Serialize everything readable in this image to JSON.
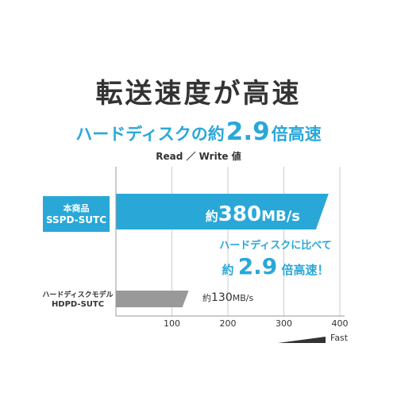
{
  "chart_data": {
    "type": "bar",
    "orientation": "horizontal",
    "title": "転送速度が高速",
    "subtitle": {
      "prefix": "ハードディスクの約",
      "ratio": "2.9",
      "suffix": "倍高速"
    },
    "measure_label": "Read ／ Write 値",
    "categories": [
      "本商品 SSPD-SUTC",
      "ハードディスクモデル HDPD-SUTC"
    ],
    "values": [
      380,
      130
    ],
    "unit": "MB/s",
    "xlim": [
      0,
      400
    ],
    "xticks": [
      100,
      200,
      300,
      400
    ],
    "grid": true,
    "direction_label": "Fast",
    "colors": {
      "highlight": "#29a8d8",
      "compare": "#999999"
    }
  },
  "bars": [
    {
      "label_line1": "本商品",
      "label_line2": "SSPD-SUTC",
      "value_prefix": "約",
      "value_number": "380",
      "value_unit": "MB/s"
    },
    {
      "label_line1": "ハードディスクモデル",
      "label_line2": "HDPD-SUTC",
      "value_prefix": "約",
      "value_number": "130",
      "value_unit": "MB/s"
    }
  ],
  "callout": {
    "line1": "ハードディスクに比べて",
    "prefix": "約",
    "ratio": "2.9",
    "suffix": "倍高速！"
  }
}
